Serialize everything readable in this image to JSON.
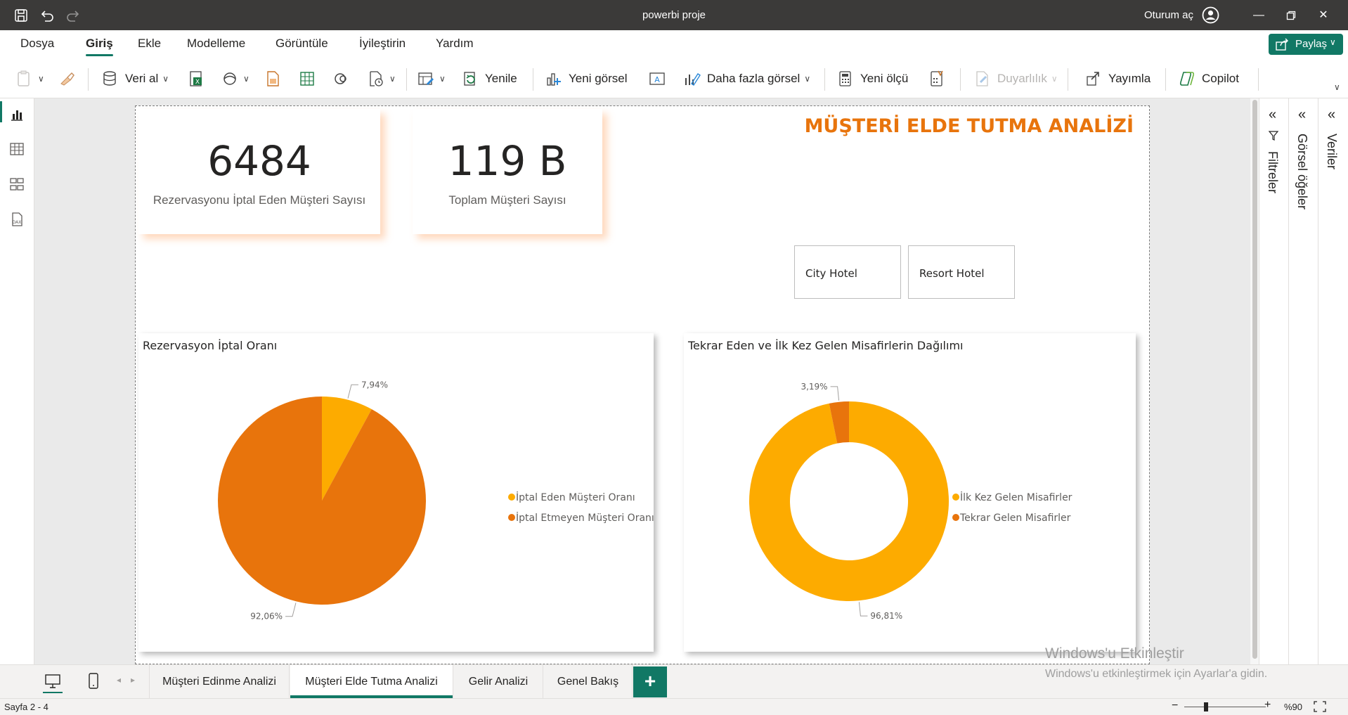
{
  "titlebar": {
    "app_title": "powerbi proje",
    "signin_label": "Oturum aç"
  },
  "menu": {
    "tabs": [
      "Dosya",
      "Giriş",
      "Ekle",
      "Modelleme",
      "Görüntüle",
      "İyileştirin",
      "Yardım"
    ],
    "active_tab": "Giriş",
    "share_label": "Paylaş"
  },
  "ribbon": {
    "get_data": "Veri al",
    "refresh": "Yenile",
    "new_visual": "Yeni görsel",
    "more_visuals": "Daha fazla görsel",
    "new_measure": "Yeni ölçü",
    "sensitivity": "Duyarlılık",
    "publish": "Yayımla",
    "copilot": "Copilot"
  },
  "report": {
    "title": "MÜŞTERİ ELDE TUTMA ANALİZİ",
    "card1": {
      "value": "6484",
      "caption": "Rezervasyonu İptal Eden Müşteri Sayısı"
    },
    "card2": {
      "value": "119 B",
      "caption": "Toplam Müşteri Sayısı"
    },
    "slicers": [
      "City Hotel",
      "Resort Hotel"
    ]
  },
  "chart_data": [
    {
      "type": "pie",
      "title": "Rezervasyon İptal Oranı",
      "series": [
        {
          "name": "İptal Eden Müşteri Oranı",
          "value": 7.94,
          "label": "7,94%",
          "color": "#fdab00"
        },
        {
          "name": "İptal Etmeyen Müşteri Oranı",
          "value": 92.06,
          "label": "92,06%",
          "color": "#e8740c"
        }
      ],
      "legend_position": "right"
    },
    {
      "type": "donut",
      "title": "Tekrar Eden ve İlk Kez Gelen Misafirlerin Dağılımı",
      "series": [
        {
          "name": "İlk Kez Gelen Misafirler",
          "value": 96.81,
          "label": "96,81%",
          "color": "#fdab00"
        },
        {
          "name": "Tekrar Gelen Misafirler",
          "value": 3.19,
          "label": "3,19%",
          "color": "#e8740c"
        }
      ],
      "legend_position": "right"
    }
  ],
  "panes": {
    "filters": "Filtreler",
    "visuals": "Görsel öğeler",
    "data": "Veriler"
  },
  "page_tabs": {
    "tabs": [
      "Müşteri Edinme Analizi",
      "Müşteri Elde Tutma Analizi",
      "Gelir Analizi",
      "Genel Bakış"
    ],
    "active": "Müşteri Elde Tutma Analizi",
    "add": "+"
  },
  "status": {
    "page_info": "Sayfa 2 - 4",
    "zoom": "%90",
    "zoom_level": 0.27
  },
  "watermark": {
    "line1": "Windows'u Etkinleştir",
    "line2": "Windows'u etkinleştirmek için Ayarlar'a gidin."
  }
}
